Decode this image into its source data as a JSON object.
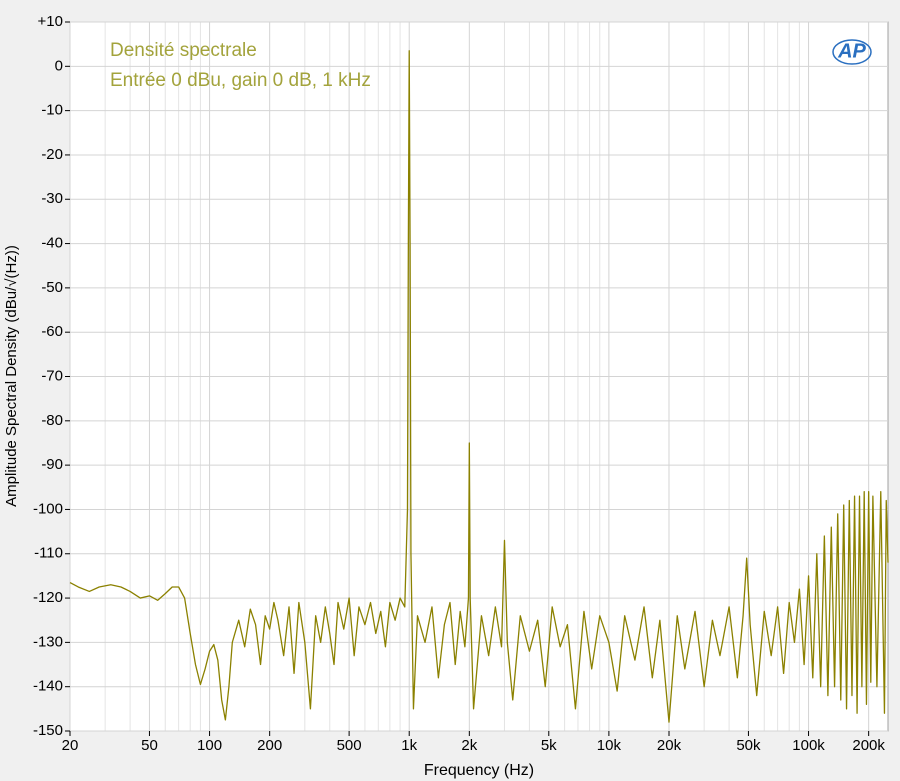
{
  "chart_data": {
    "type": "line",
    "title": "Densité spectrale",
    "subtitle": "Entrée 0 dBu, gain 0 dB, 1 kHz",
    "logo": "AP",
    "x_label": "Frequency (Hz)",
    "y_label": "Amplitude Spectral Density (dBu/√(Hz))",
    "xscale": "log",
    "xlim": [
      20,
      250000
    ],
    "ylim": [
      -150,
      10
    ],
    "xticks": [
      20,
      50,
      100,
      200,
      500,
      {
        "value": 1000,
        "label": "1k"
      },
      {
        "value": 2000,
        "label": "2k"
      },
      {
        "value": 5000,
        "label": "5k"
      },
      {
        "value": 10000,
        "label": "10k"
      },
      {
        "value": 20000,
        "label": "20k"
      },
      {
        "value": 50000,
        "label": "50k"
      },
      {
        "value": 100000,
        "label": "100k"
      },
      {
        "value": 200000,
        "label": "200k"
      }
    ],
    "x_minor_grid": [
      30,
      40,
      60,
      70,
      80,
      90,
      300,
      400,
      600,
      700,
      800,
      900,
      3000,
      4000,
      6000,
      7000,
      8000,
      9000,
      30000,
      40000,
      60000,
      70000,
      80000,
      90000
    ],
    "yticks": [
      {
        "value": 10,
        "label": "+10"
      },
      0,
      -10,
      -20,
      -30,
      -40,
      -50,
      -60,
      -70,
      -80,
      -90,
      -100,
      -110,
      -120,
      -130,
      -140,
      -150
    ],
    "grid": true,
    "color": "#8b8100",
    "x": [
      20,
      22,
      25,
      28,
      32,
      36,
      40,
      45,
      50,
      55,
      60,
      65,
      70,
      75,
      80,
      85,
      90,
      95,
      100,
      105,
      110,
      115,
      120,
      125,
      130,
      140,
      150,
      160,
      170,
      180,
      190,
      200,
      210,
      220,
      235,
      250,
      265,
      280,
      300,
      320,
      340,
      360,
      380,
      400,
      420,
      440,
      470,
      500,
      530,
      560,
      600,
      640,
      680,
      720,
      760,
      800,
      850,
      900,
      950,
      980,
      990,
      1000,
      1010,
      1020,
      1050,
      1100,
      1200,
      1300,
      1400,
      1500,
      1600,
      1700,
      1800,
      1900,
      1980,
      2000,
      2020,
      2100,
      2300,
      2500,
      2700,
      2900,
      3000,
      3100,
      3300,
      3600,
      4000,
      4400,
      4800,
      5200,
      5700,
      6200,
      6800,
      7500,
      8200,
      9000,
      10000,
      11000,
      12000,
      13500,
      15000,
      16500,
      18000,
      20000,
      22000,
      24000,
      27000,
      30000,
      33000,
      36000,
      40000,
      44000,
      47000,
      49000,
      51000,
      55000,
      60000,
      65000,
      70000,
      75000,
      80000,
      85000,
      90000,
      95000,
      100000,
      105000,
      110000,
      115000,
      120000,
      125000,
      130000,
      135000,
      140000,
      145000,
      150000,
      155000,
      160000,
      165000,
      170000,
      175000,
      180000,
      185000,
      190000,
      195000,
      200000,
      205000,
      210000,
      220000,
      230000,
      240000,
      245000,
      250000
    ],
    "values": [
      -116.5,
      -117.5,
      -118.5,
      -117.5,
      -117,
      -117.5,
      -118.5,
      -120,
      -119.5,
      -120.5,
      -119,
      -117.5,
      -117.5,
      -120,
      -128,
      -135,
      -139.5,
      -136,
      -132,
      -130.5,
      -134,
      -143,
      -147.5,
      -140,
      -130,
      -125,
      -131,
      -122.5,
      -126,
      -135,
      -124,
      -127,
      -121,
      -125,
      -133,
      -122,
      -137,
      -121,
      -130,
      -145,
      -124,
      -130,
      -122,
      -128,
      -135,
      -121,
      -127,
      -120,
      -133,
      -122,
      -126,
      -121,
      -128,
      -123,
      -131,
      -121,
      -125,
      -120,
      -122,
      -100,
      -40,
      3.5,
      -40,
      -110,
      -145,
      -124,
      -130,
      -122,
      -138,
      -126,
      -121,
      -135,
      -123,
      -131,
      -120,
      -85,
      -120,
      -145,
      -124,
      -133,
      -122,
      -131,
      -107,
      -130,
      -143,
      -124,
      -132,
      -125,
      -140,
      -122,
      -131,
      -126,
      -145,
      -123,
      -136,
      -124,
      -130,
      -141,
      -124,
      -134,
      -122,
      -138,
      -125,
      -148,
      -124,
      -136,
      -123,
      -140,
      -125,
      -133,
      -122,
      -138,
      -124,
      -111,
      -126,
      -142,
      -123,
      -133,
      -122,
      -137,
      -121,
      -130,
      -118,
      -135,
      -115,
      -138,
      -110,
      -140,
      -106,
      -142,
      -104,
      -140,
      -101,
      -143,
      -99,
      -145,
      -98,
      -142,
      -97,
      -146,
      -97,
      -140,
      -96,
      -144,
      -96,
      -139,
      -97,
      -140,
      -96,
      -146,
      -98,
      -112
    ]
  }
}
